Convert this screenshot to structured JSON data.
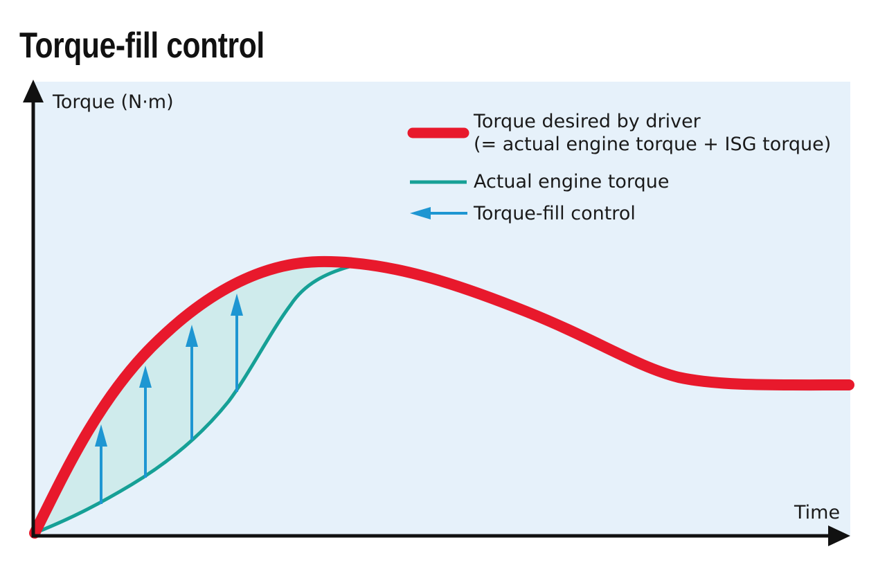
{
  "title": "Torque-fill control",
  "axes": {
    "y_label": "Torque (N·m)",
    "x_label": "Time"
  },
  "legend": {
    "items": [
      {
        "line1": "Torque desired by driver",
        "line2": "(= actual engine torque + ISG torque)",
        "color": "#e8192c",
        "kind": "thick-line"
      },
      {
        "line1": "Actual engine torque",
        "color": "#16a096",
        "kind": "line"
      },
      {
        "line1": "Torque-fill control",
        "color": "#1e96d2",
        "kind": "arrow"
      }
    ]
  },
  "colors": {
    "plot_background": "#e6f1fa",
    "fill_region": "#cfebec",
    "desired_torque": "#e8192c",
    "engine_torque": "#16a096",
    "fill_arrows": "#1e96d2",
    "axes": "#111111"
  },
  "fill_arrow_count": 4
}
